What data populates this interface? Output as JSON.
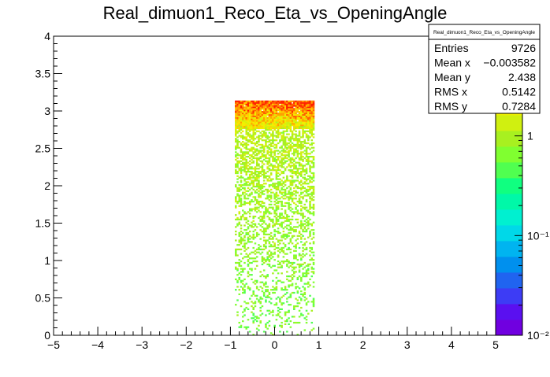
{
  "chart_data": {
    "type": "heatmap",
    "title": "Real_dimuon1_Reco_Eta_vs_OpeningAngle",
    "xlabel": "",
    "ylabel": "",
    "xlim": [
      -5,
      5
    ],
    "ylim": [
      0,
      4
    ],
    "x_ticks": [
      "−5",
      "−4",
      "−3",
      "−2",
      "−1",
      "0",
      "1",
      "2",
      "3",
      "4",
      "5"
    ],
    "y_ticks": [
      "0",
      "0.5",
      "1",
      "1.5",
      "2",
      "2.5",
      "3",
      "3.5",
      "4"
    ],
    "colorbar": {
      "scale": "log",
      "range": [
        0.01,
        10
      ],
      "ticks": [
        {
          "label": "1",
          "value": 1
        },
        {
          "label": "10⁻¹",
          "value": 0.1
        },
        {
          "label": "10⁻²",
          "value": 0.01
        }
      ]
    },
    "occupied_region": {
      "x": [
        -0.9,
        0.9
      ],
      "y": [
        0,
        3.14
      ]
    },
    "dense_band": {
      "y": [
        2.75,
        3.14
      ]
    },
    "stats": {
      "name": "Real_dimuon1_Reco_Eta_vs_OpeningAngle",
      "rows": [
        {
          "label": "Entries",
          "value": "9726"
        },
        {
          "label": "Mean x",
          "value": "−0.003582"
        },
        {
          "label": "Mean y",
          "value": "2.438"
        },
        {
          "label": "RMS x",
          "value": "0.5142"
        },
        {
          "label": "RMS y",
          "value": "0.7284"
        }
      ]
    },
    "palette": [
      "#7000e0",
      "#5a10f0",
      "#3d3cf5",
      "#2064f0",
      "#0090ee",
      "#00b4f0",
      "#00d8e8",
      "#00f0d0",
      "#00f8a8",
      "#10ff80",
      "#50ff50",
      "#80ff30",
      "#a8f020",
      "#d0f010",
      "#f0f000",
      "#ffd000",
      "#ffa000",
      "#ff6000",
      "#ff2000"
    ]
  }
}
